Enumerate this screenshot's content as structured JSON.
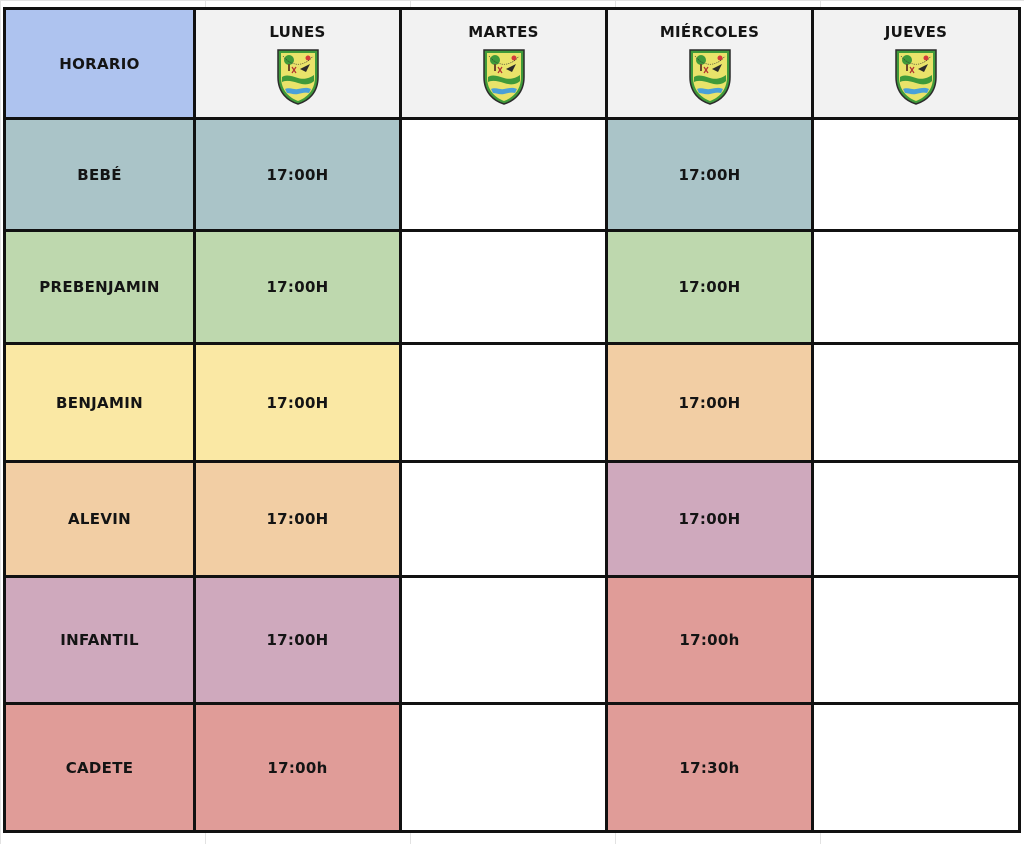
{
  "schedule": {
    "corner_label": "HORARIO",
    "days": [
      {
        "label": "LUNES",
        "icon": "club-crest-icon"
      },
      {
        "label": "MARTES",
        "icon": "club-crest-icon"
      },
      {
        "label": "MIÉRCOLES",
        "icon": "club-crest-icon"
      },
      {
        "label": "JUEVES",
        "icon": "club-crest-icon"
      }
    ],
    "rows": [
      {
        "category": "BEBÉ",
        "lunes": "17:00H",
        "martes": "",
        "miercoles": "17:00H",
        "jueves": "",
        "colors": {
          "category": "#aac4c8",
          "lunes": "#aac4c8",
          "miercoles": "#aac4c8"
        }
      },
      {
        "category": "PREBENJAMIN",
        "lunes": "17:00H",
        "martes": "",
        "miercoles": "17:00H",
        "jueves": "",
        "colors": {
          "category": "#bed8ae",
          "lunes": "#bed8ae",
          "miercoles": "#bed8ae"
        }
      },
      {
        "category": "BENJAMIN",
        "lunes": "17:00H",
        "martes": "",
        "miercoles": "17:00H",
        "jueves": "",
        "colors": {
          "category": "#fae8a4",
          "lunes": "#fae8a4",
          "miercoles": "#f2cea4"
        }
      },
      {
        "category": "ALEVIN",
        "lunes": "17:00H",
        "martes": "",
        "miercoles": "17:00H",
        "jueves": "",
        "colors": {
          "category": "#f2cea4",
          "lunes": "#f2cea4",
          "miercoles": "#cfa9bd"
        }
      },
      {
        "category": "INFANTIL",
        "lunes": "17:00H",
        "martes": "",
        "miercoles": "17:00h",
        "jueves": "",
        "colors": {
          "category": "#cfa9bd",
          "lunes": "#cfa9bd",
          "miercoles": "#e09c98"
        }
      },
      {
        "category": "CADETE",
        "lunes": "17:00h",
        "martes": "",
        "miercoles": "17:30h",
        "jueves": "",
        "colors": {
          "category": "#e09c98",
          "lunes": "#e09c98",
          "miercoles": "#e09c98"
        }
      }
    ],
    "colors": {
      "header_corner": "#aec3ef",
      "header_day": "#f2f2f2",
      "border": "#111111"
    }
  }
}
